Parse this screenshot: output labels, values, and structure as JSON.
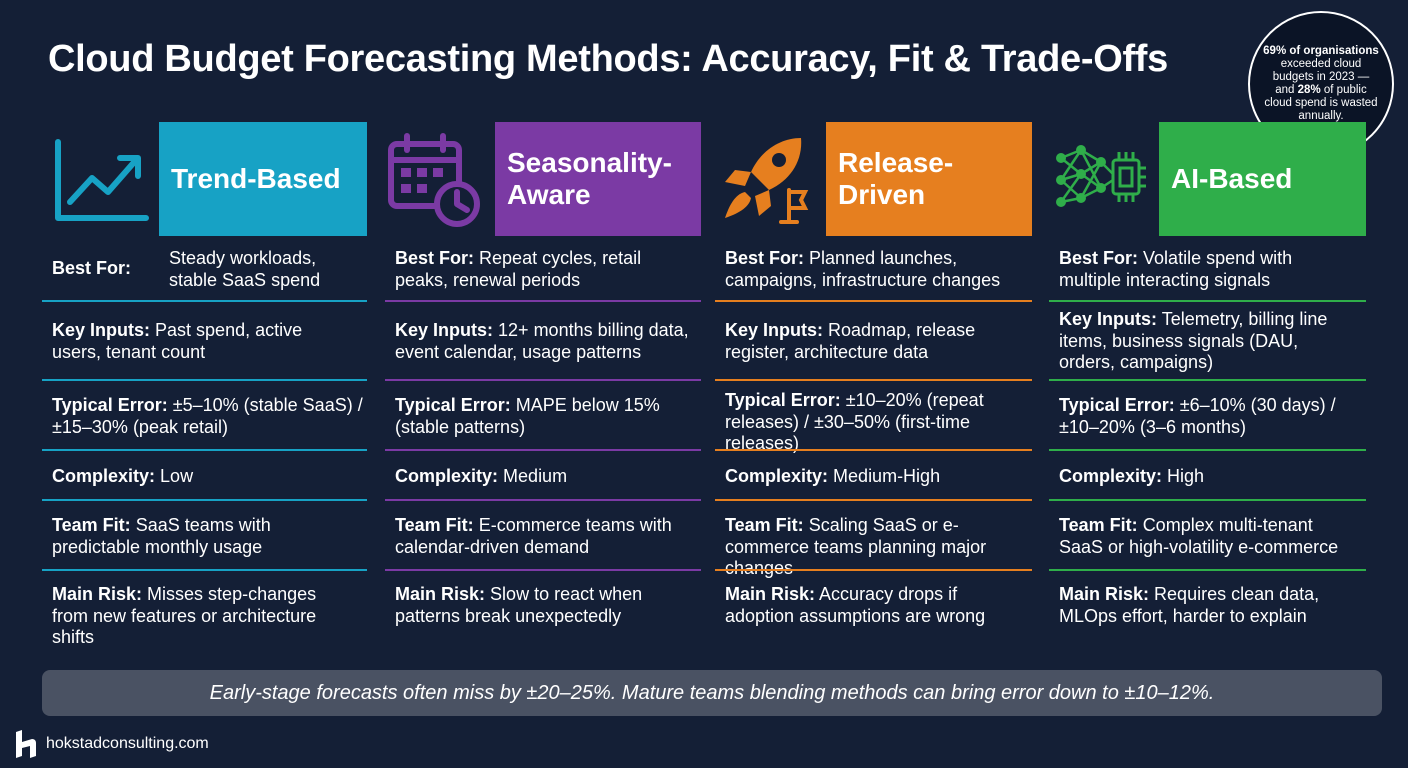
{
  "title": "Cloud Budget Forecasting Methods: Accuracy, Fit & Trade-Offs",
  "stat": {
    "line1_bold": "69% of organisations",
    "line2": "exceeded cloud budgets in 2023 — and",
    "line3_bold": "28%",
    "line4": "of public cloud spend is wasted annually."
  },
  "colors": {
    "trend": "#17a2c5",
    "seasonal": "#7b3aa4",
    "release": "#e67f1f",
    "ai": "#2fae4a"
  },
  "columns": [
    {
      "name": "Trend-Based",
      "icon": "trend-chart-icon",
      "best_for_label": "Best For:",
      "best_for": "Steady workloads, stable SaaS spend",
      "key_inputs_label": "Key Inputs:",
      "key_inputs": "Past spend, active users, tenant count",
      "typical_error_label": "Typical Error:",
      "typical_error": "±5–10% (stable SaaS) / ±15–30% (peak retail)",
      "complexity_label": "Complexity:",
      "complexity": "Low",
      "team_fit_label": "Team Fit:",
      "team_fit": "SaaS teams with predictable monthly usage",
      "main_risk_label": "Main Risk:",
      "main_risk": "Misses step-changes from new features or architecture shifts"
    },
    {
      "name": "Seasonality-Aware",
      "icon": "calendar-clock-icon",
      "best_for_label": "Best For:",
      "best_for": "Repeat cycles, retail peaks, renewal periods",
      "key_inputs_label": "Key Inputs:",
      "key_inputs": "12+ months billing data, event calendar, usage patterns",
      "typical_error_label": "Typical Error:",
      "typical_error": "MAPE below 15% (stable patterns)",
      "complexity_label": "Complexity:",
      "complexity": "Medium",
      "team_fit_label": "Team Fit:",
      "team_fit": "E-commerce teams with calendar-driven demand",
      "main_risk_label": "Main Risk:",
      "main_risk": "Slow to react when patterns break unexpectedly"
    },
    {
      "name": "Release-Driven",
      "icon": "rocket-icon",
      "best_for_label": "Best For:",
      "best_for": "Planned launches, campaigns, infrastructure changes",
      "key_inputs_label": "Key Inputs:",
      "key_inputs": "Roadmap, release register, architecture data",
      "typical_error_label": "Typical Error:",
      "typical_error": "±10–20% (repeat releases) / ±30–50% (first-time releases)",
      "complexity_label": "Complexity:",
      "complexity": "Medium-High",
      "team_fit_label": "Team Fit:",
      "team_fit": "Scaling SaaS or e-commerce teams planning major changes",
      "main_risk_label": "Main Risk:",
      "main_risk": "Accuracy drops if adoption assumptions are wrong"
    },
    {
      "name": "AI-Based",
      "icon": "neural-chip-icon",
      "best_for_label": "Best For:",
      "best_for": "Volatile spend with multiple interacting signals",
      "key_inputs_label": "Key Inputs:",
      "key_inputs": "Telemetry, billing line items, business signals (DAU, orders, campaigns)",
      "typical_error_label": "Typical Error:",
      "typical_error": "±6–10% (30 days) / ±10–20% (3–6 months)",
      "complexity_label": "Complexity:",
      "complexity": "High",
      "team_fit_label": "Team Fit:",
      "team_fit": "Complex multi-tenant SaaS or high-volatility e-commerce",
      "main_risk_label": "Main Risk:",
      "main_risk": "Requires clean data, MLOps effort, harder to explain"
    }
  ],
  "footer": "Early-stage forecasts often miss by ±20–25%. Mature teams blending methods can bring error down to ±10–12%.",
  "brand": "hokstadconsulting.com"
}
